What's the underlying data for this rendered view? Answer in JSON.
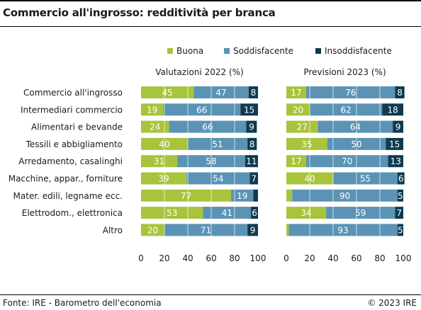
{
  "title": "Commercio all'ingrosso: redditività per branca",
  "source": "Fonte: IRE - Barometro dell'economia",
  "copyright": "© 2023 IRE",
  "colors": {
    "buona": "#a8c43c",
    "soddisfacente": "#5b93b4",
    "insoddisfacente": "#0f3a4f",
    "grid": "#ffffff"
  },
  "chart_data": {
    "type": "bar",
    "orientation": "horizontal",
    "stacked": true,
    "legend": [
      "Buona",
      "Soddisfacente",
      "Insoddisfacente"
    ],
    "legend_position": "top-right",
    "categories": [
      "Commercio all'ingrosso",
      "Intermediari commercio",
      "Alimentari e bevande",
      "Tessili e abbigliamento",
      "Arredamento, casalinghi",
      "Macchine, appar., forniture",
      "Mater. edili, legname ecc.",
      "Elettrodom., elettronica",
      "Altro"
    ],
    "panels": [
      {
        "title": "Valutazioni 2022 (%)",
        "xlim": [
          0,
          100
        ],
        "ticks": [
          "0",
          "20",
          "40",
          "60",
          "80",
          "100"
        ],
        "series": [
          {
            "name": "Buona",
            "values": [
              45,
              19,
              24,
              40,
              31,
              39,
              77,
              53,
              20
            ],
            "labels": [
              "45",
              "19",
              "24",
              "40",
              "31",
              "39",
              "77",
              "53",
              "20"
            ]
          },
          {
            "name": "Soddisfacente",
            "values": [
              47,
              66,
              66,
              51,
              58,
              54,
              19,
              41,
              71
            ],
            "labels": [
              "47",
              "66",
              "66",
              "51",
              "58",
              "54",
              "19",
              "41",
              "71"
            ]
          },
          {
            "name": "Insoddisfacente",
            "values": [
              8,
              15,
              9,
              8,
              11,
              7,
              4,
              6,
              9
            ],
            "labels": [
              "8",
              "15",
              "9",
              "8",
              "11",
              "7",
              "",
              "6",
              "9"
            ]
          }
        ]
      },
      {
        "title": "Previsioni 2023 (%)",
        "xlim": [
          0,
          100
        ],
        "ticks": [
          "0",
          "20",
          "40",
          "60",
          "80",
          "100"
        ],
        "series": [
          {
            "name": "Buona",
            "values": [
              17,
              20,
              27,
              35,
              17,
              40,
              5,
              34,
              2
            ],
            "labels": [
              "17",
              "20",
              "27",
              "35",
              "17",
              "40",
              "",
              "34",
              ""
            ]
          },
          {
            "name": "Soddisfacente",
            "values": [
              76,
              62,
              64,
              50,
              70,
              55,
              90,
              59,
              93
            ],
            "labels": [
              "76",
              "62",
              "64",
              "50",
              "70",
              "55",
              "90",
              "59",
              "93"
            ]
          },
          {
            "name": "Insoddisfacente",
            "values": [
              8,
              18,
              9,
              15,
              13,
              6,
              5,
              7,
              5
            ],
            "labels": [
              "8",
              "18",
              "9",
              "15",
              "13",
              "6",
              "5",
              "7",
              "5"
            ]
          }
        ]
      }
    ]
  }
}
